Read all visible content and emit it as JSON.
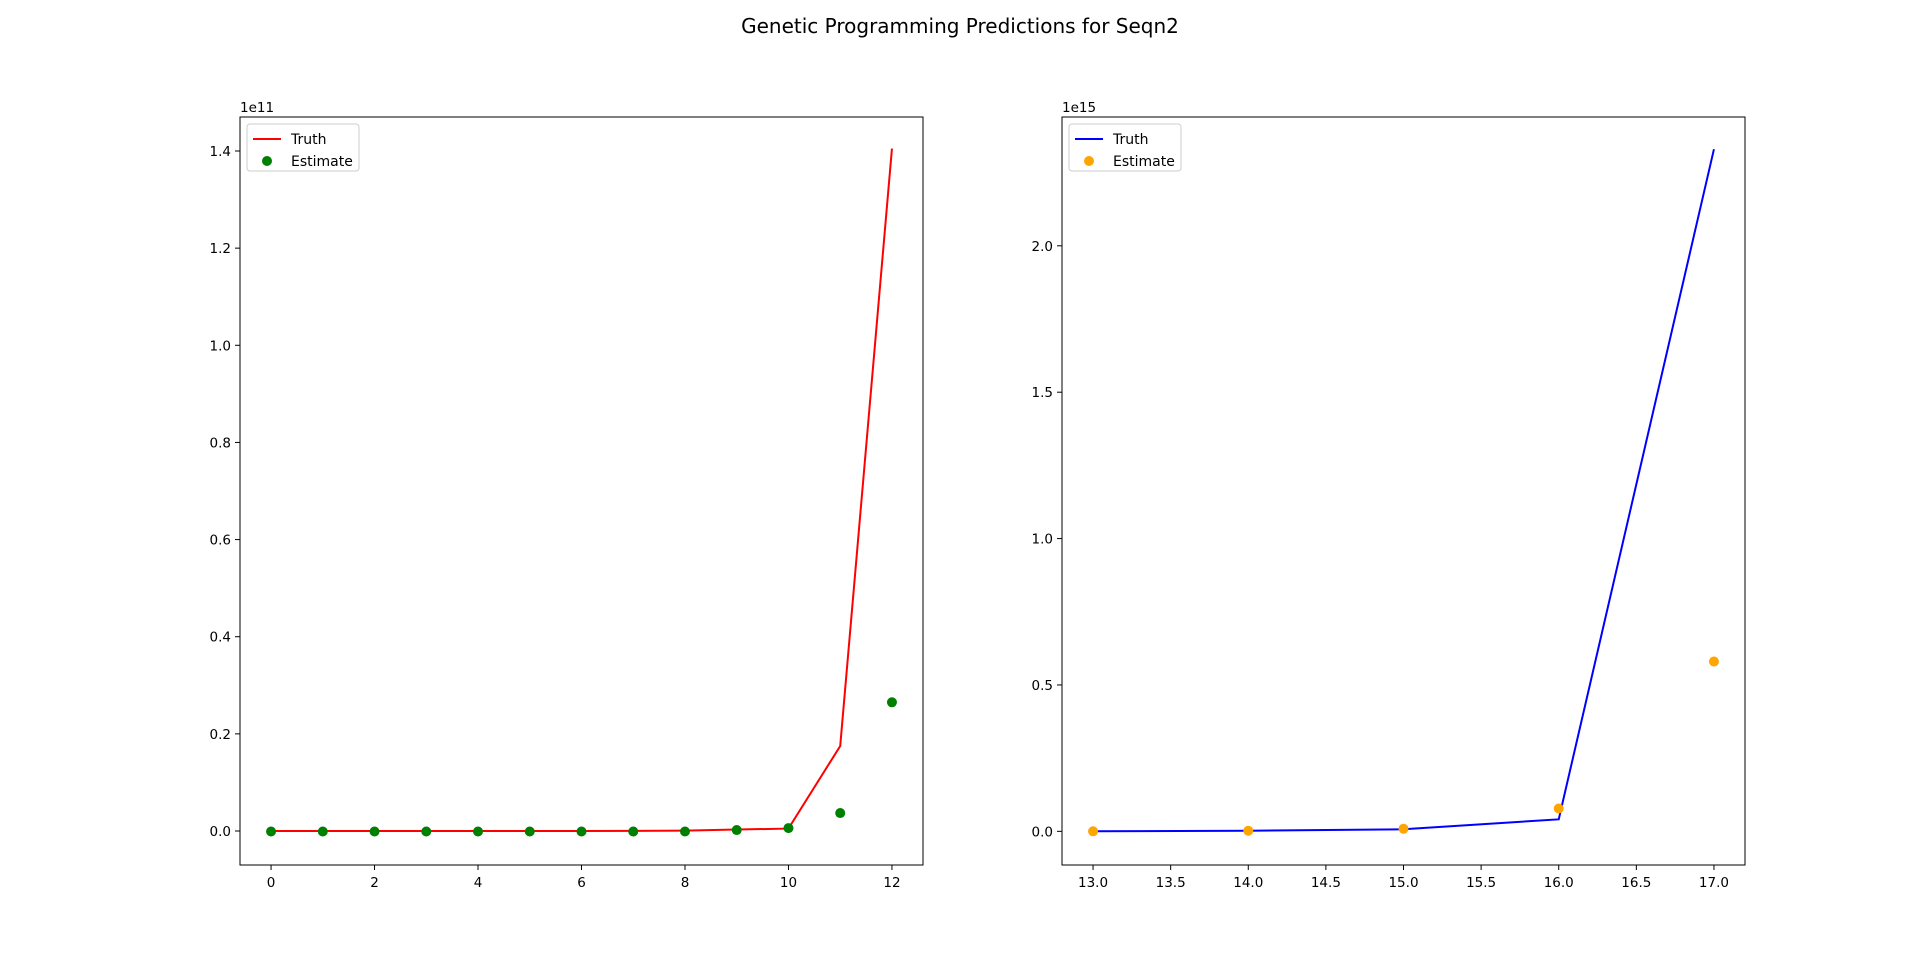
{
  "figure": {
    "title": "Genetic Programming Predictions for Seqn2"
  },
  "chart_data": [
    {
      "type": "line",
      "title": "",
      "xlabel": "",
      "ylabel": "",
      "offset_label": "1e11",
      "legend_position": "upper-left",
      "grid": false,
      "xlim": [
        -0.6,
        12.6
      ],
      "ylim": [
        -0.07,
        1.47
      ],
      "x_ticks": [
        0,
        2,
        4,
        6,
        8,
        10,
        12
      ],
      "x_tick_labels": [
        "0",
        "2",
        "4",
        "6",
        "8",
        "10",
        "12"
      ],
      "y_ticks": [
        0,
        0.2,
        0.4,
        0.6,
        0.8,
        1.0,
        1.2,
        1.4
      ],
      "y_tick_labels": [
        "0.0",
        "0.2",
        "0.4",
        "0.6",
        "0.8",
        "1.0",
        "1.2",
        "1.4"
      ],
      "x": [
        0,
        1,
        2,
        3,
        4,
        5,
        6,
        7,
        8,
        9,
        10,
        11,
        12
      ],
      "series": [
        {
          "name": "Truth",
          "kind": "line",
          "color": "#ff0000",
          "values": [
            0,
            0,
            0,
            0,
            0,
            0,
            0,
            0.0002,
            0.0008,
            0.003,
            0.005,
            0.175,
            1.405
          ]
        },
        {
          "name": "Estimate",
          "kind": "scatter",
          "color": "#008000",
          "values": [
            -0.001,
            -0.001,
            -0.001,
            -0.001,
            -0.001,
            -0.001,
            -0.001,
            -0.001,
            -0.001,
            0.002,
            0.006,
            0.037,
            0.265
          ]
        }
      ]
    },
    {
      "type": "line",
      "title": "",
      "xlabel": "",
      "ylabel": "",
      "offset_label": "1e15",
      "legend_position": "upper-left",
      "grid": false,
      "xlim": [
        12.8,
        17.2
      ],
      "ylim": [
        -0.115,
        2.44
      ],
      "x_ticks": [
        13.0,
        13.5,
        14.0,
        14.5,
        15.0,
        15.5,
        16.0,
        16.5,
        17.0
      ],
      "x_tick_labels": [
        "13.0",
        "13.5",
        "14.0",
        "14.5",
        "15.0",
        "15.5",
        "16.0",
        "16.5",
        "17.0"
      ],
      "y_ticks": [
        0,
        0.5,
        1.0,
        1.5,
        2.0
      ],
      "y_tick_labels": [
        "0.0",
        "0.5",
        "1.0",
        "1.5",
        "2.0"
      ],
      "x": [
        13,
        14,
        15,
        16,
        17
      ],
      "series": [
        {
          "name": "Truth",
          "kind": "line",
          "color": "#0000ff",
          "values": [
            0.0003,
            0.002,
            0.007,
            0.041,
            2.33
          ]
        },
        {
          "name": "Estimate",
          "kind": "scatter",
          "color": "#ffa500",
          "values": [
            0.0001,
            0.002,
            0.009,
            0.078,
            0.58
          ]
        }
      ]
    }
  ]
}
